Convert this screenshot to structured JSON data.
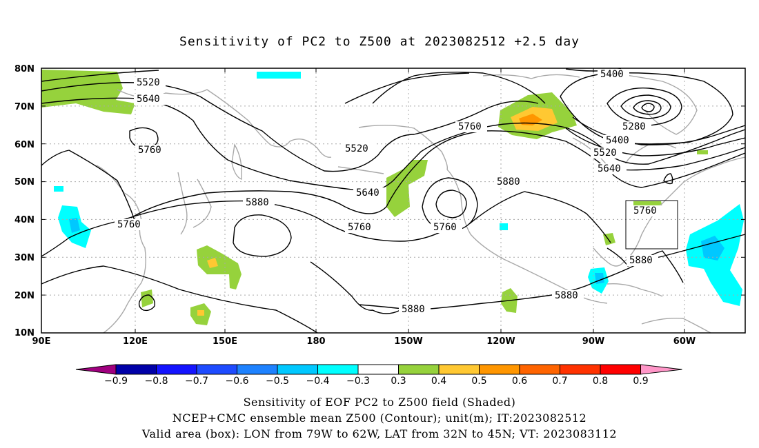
{
  "title": "Sensitivity of PC2 to Z500 at 2023082512 +2.5 day",
  "lat_ticks": [
    "80N",
    "70N",
    "60N",
    "50N",
    "40N",
    "30N",
    "20N",
    "10N"
  ],
  "lon_ticks": [
    "90E",
    "120E",
    "150E",
    "180",
    "150W",
    "120W",
    "90W",
    "60W"
  ],
  "contour_labels": [
    {
      "text": "5400",
      "name": "contour-label-5400-north"
    },
    {
      "text": "5520",
      "name": "contour-label-5520-west"
    },
    {
      "text": "5640",
      "name": "contour-label-5640-west"
    },
    {
      "text": "5760",
      "name": "contour-label-5760-west-low"
    },
    {
      "text": "5760",
      "name": "contour-label-5760-asia"
    },
    {
      "text": "5880",
      "name": "contour-label-5880-pacific"
    },
    {
      "text": "5520",
      "name": "contour-label-5520-pacific"
    },
    {
      "text": "5640",
      "name": "contour-label-5640-pacific"
    },
    {
      "text": "5760",
      "name": "contour-label-5760-pacific"
    },
    {
      "text": "5760",
      "name": "contour-label-5760-cutoff"
    },
    {
      "text": "5760",
      "name": "contour-label-5760-canada"
    },
    {
      "text": "5880",
      "name": "contour-label-5880-us"
    },
    {
      "text": "5280",
      "name": "contour-label-5280"
    },
    {
      "text": "5400",
      "name": "contour-label-5400-east"
    },
    {
      "text": "5520",
      "name": "contour-label-5520-east"
    },
    {
      "text": "5640",
      "name": "contour-label-5640-east"
    },
    {
      "text": "5760",
      "name": "contour-label-5760-box"
    },
    {
      "text": "5880",
      "name": "contour-label-5880-atlantic"
    },
    {
      "text": "5880",
      "name": "contour-label-5880-gulf"
    },
    {
      "text": "5880",
      "name": "contour-label-5880-tropics"
    }
  ],
  "colorbar": {
    "labels": [
      "−0.9",
      "−0.8",
      "−0.7",
      "−0.6",
      "−0.5",
      "−0.4",
      "−0.3",
      "0.3",
      "0.4",
      "0.5",
      "0.6",
      "0.7",
      "0.8",
      "0.9"
    ],
    "colors": [
      "#a0007f",
      "#0000a8",
      "#1414ff",
      "#1e4bff",
      "#1e82ff",
      "#00c8ff",
      "#00ffff",
      "#ffffff",
      "#96d23c",
      "#ffc832",
      "#ff9600",
      "#ff6400",
      "#ff3200",
      "#ff0000",
      "#ff96c8"
    ]
  },
  "footer": {
    "line1": "Sensitivity of EOF PC2 to Z500 field (Shaded)",
    "line2": "NCEP+CMC ensemble mean Z500 (Contour); unit(m); IT:2023082512",
    "line3": "Valid area (box): LON from 79W to 62W, LAT from 32N to 45N; VT: 2023083112"
  }
}
